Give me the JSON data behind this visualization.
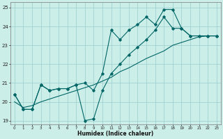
{
  "xlabel": "Humidex (Indice chaleur)",
  "bg_color": "#cceee8",
  "grid_color": "#99cccc",
  "line_color": "#006666",
  "xlim": [
    -0.5,
    23.5
  ],
  "ylim": [
    18.8,
    25.3
  ],
  "xticks": [
    0,
    1,
    2,
    3,
    4,
    5,
    6,
    7,
    8,
    9,
    10,
    11,
    12,
    13,
    14,
    15,
    16,
    17,
    18,
    19,
    20,
    21,
    22,
    23
  ],
  "yticks": [
    19,
    20,
    21,
    22,
    23,
    24,
    25
  ],
  "series1_x": [
    0,
    1,
    2,
    3,
    4,
    5,
    6,
    7,
    8,
    9,
    10,
    11,
    12,
    13,
    14,
    15,
    16,
    17,
    18,
    19,
    20,
    21,
    22,
    23
  ],
  "series1_y": [
    20.4,
    19.6,
    19.6,
    20.9,
    20.6,
    20.7,
    20.7,
    20.9,
    21.0,
    20.6,
    21.5,
    23.8,
    23.3,
    23.8,
    24.1,
    24.5,
    24.1,
    24.9,
    24.9,
    23.9,
    23.5,
    23.5,
    23.5,
    23.5
  ],
  "series2_x": [
    0,
    1,
    2,
    3,
    4,
    5,
    6,
    7,
    8,
    9,
    10,
    11,
    12,
    13,
    14,
    15,
    16,
    17,
    18,
    19,
    20,
    21,
    22,
    23
  ],
  "series2_y": [
    20.0,
    19.7,
    19.8,
    20.0,
    20.15,
    20.3,
    20.45,
    20.6,
    20.75,
    20.9,
    21.1,
    21.3,
    21.6,
    21.8,
    22.05,
    22.3,
    22.5,
    22.7,
    23.0,
    23.15,
    23.3,
    23.45,
    23.5,
    23.5
  ],
  "series3_x": [
    0,
    1,
    2,
    3,
    4,
    5,
    6,
    7,
    8,
    9,
    10,
    11,
    12,
    13,
    14,
    15,
    16,
    17,
    18,
    19,
    20,
    21,
    22,
    23
  ],
  "series3_y": [
    20.4,
    19.6,
    19.6,
    20.9,
    20.6,
    20.7,
    20.7,
    20.9,
    19.0,
    19.1,
    20.6,
    21.5,
    22.0,
    22.5,
    22.9,
    23.3,
    23.8,
    24.5,
    23.9,
    23.9,
    23.5,
    23.5,
    23.5,
    23.5
  ]
}
